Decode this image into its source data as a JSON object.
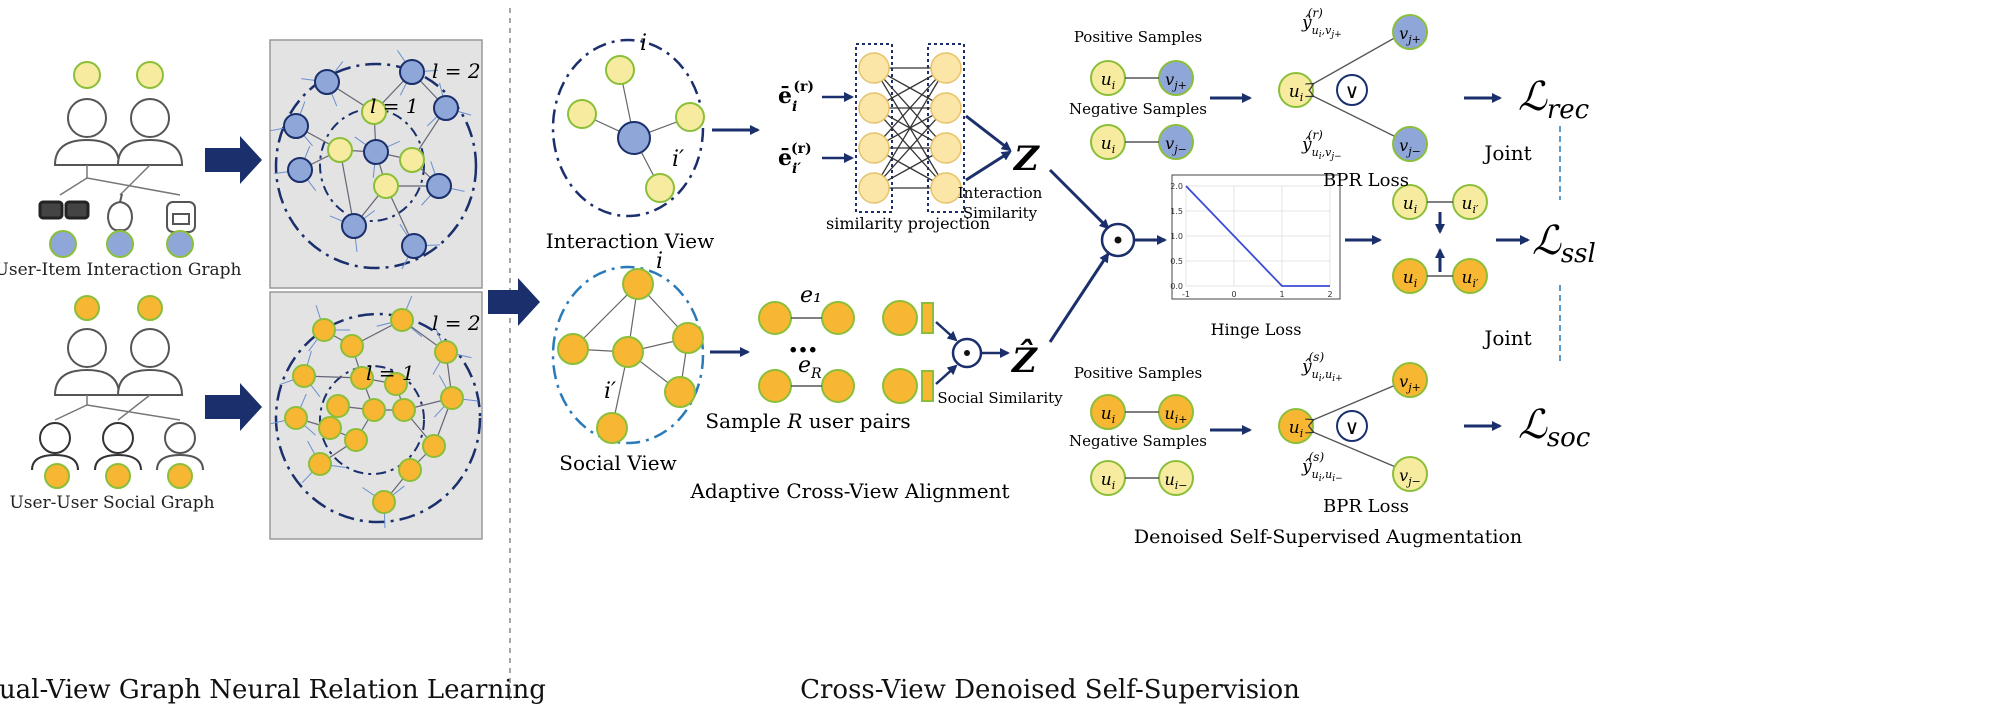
{
  "left_panel": {
    "title": "Dual-View Graph Neural Relation Learning",
    "ui_graph_label": "User-Item Interaction Graph",
    "uu_graph_label": "User-User Social Graph",
    "layer_one": "l = 1",
    "layer_two": "l = 2"
  },
  "right_panel": {
    "title": "Cross-View Denoised Self-Supervision",
    "interaction_view_label": "Interaction View",
    "social_view_label": "Social View",
    "node_i": "i",
    "node_i_prime": "i′",
    "emb_i": "ē",
    "emb_sup": "(r)",
    "emb_sub_i": "i",
    "emb_sub_ip": "i′",
    "similarity_projection": "similarity projection",
    "z_label": "Z",
    "z_hat_label": "Ẑ",
    "interaction_similarity": "Interaction\nSimilarity",
    "social_similarity": "Social Similarity",
    "e1": "e₁",
    "eR": "e_R",
    "dots": "…",
    "sample_pairs": "Sample R user pairs",
    "adaptive_alignment": "Adaptive Cross-View Alignment",
    "hinge_loss": "Hinge Loss",
    "denoised_aug": "Denoised Self-Supervised Augmentation",
    "positive_samples": "Positive Samples",
    "negative_samples": "Negative Samples",
    "bpr_loss": "BPR Loss",
    "joint": "Joint",
    "loss_rec": "ℒrec",
    "loss_ssl": "ℒssl",
    "loss_soc": "ℒsoc",
    "odot": "⊙",
    "vee": "∨"
  },
  "hinge_chart": {
    "chart_data": {
      "type": "line",
      "x": [
        -1,
        0,
        1,
        2
      ],
      "y": [
        2.0,
        1.0,
        0.0,
        0.0
      ],
      "xticks": [
        "-1",
        "0",
        "1",
        "2"
      ],
      "yticks": [
        "0.0",
        "0.5",
        "1.0",
        "1.5",
        "2.0"
      ],
      "xlim": [
        -1,
        2
      ],
      "ylim": [
        0,
        2
      ],
      "grid": true,
      "color": "#3b4bd8"
    }
  },
  "colors": {
    "dark_blue": "#1a2f6b",
    "item_blue": "#8fa7d8",
    "user_yellow": "#f6eb9e",
    "social_orange": "#f7b733",
    "node_border": "#8bbf3a",
    "gray_panel": "#e3e3e3"
  }
}
